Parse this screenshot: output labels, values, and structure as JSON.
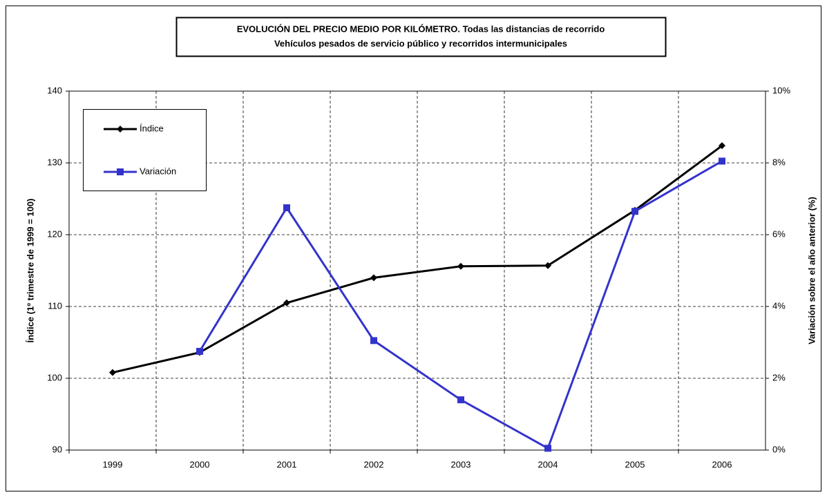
{
  "chart_data": {
    "type": "line",
    "title": [
      "EVOLUCIÓN DEL PRECIO MEDIO POR KILÓMETRO. Todas las distancias de recorrido",
      "Vehículos pesados de servicio público y recorridos intermunicipales"
    ],
    "y_label": "Índice (1º trimestre de 1999 = 100)",
    "y2_label": "Variación sobre el año anterior (%)",
    "categories": [
      "1999",
      "2000",
      "2001",
      "2002",
      "2003",
      "2004",
      "2005",
      "2006"
    ],
    "series": [
      {
        "name": "Índice",
        "color": "#000000",
        "marker": "diamond",
        "values": [
          100.8,
          103.6,
          110.5,
          114.0,
          115.6,
          115.7,
          123.4,
          132.4
        ]
      },
      {
        "name": "Variación",
        "color": "#3333cc",
        "marker": "square",
        "axis": "y2",
        "values": [
          null,
          2.75,
          6.75,
          3.05,
          1.4,
          0.05,
          6.65,
          8.05
        ]
      }
    ],
    "ylim": [
      90,
      140
    ],
    "yticks": [
      90,
      100,
      110,
      120,
      130,
      140
    ],
    "y2lim": [
      0,
      10
    ],
    "y2ticks": [
      {
        "value": 0,
        "label": "0%"
      },
      {
        "value": 2,
        "label": "2%"
      },
      {
        "value": 4,
        "label": "4%"
      },
      {
        "value": 6,
        "label": "6%"
      },
      {
        "value": 8,
        "label": "8%"
      },
      {
        "value": 10,
        "label": "10%"
      }
    ],
    "grid": true,
    "legend": "upper left"
  }
}
